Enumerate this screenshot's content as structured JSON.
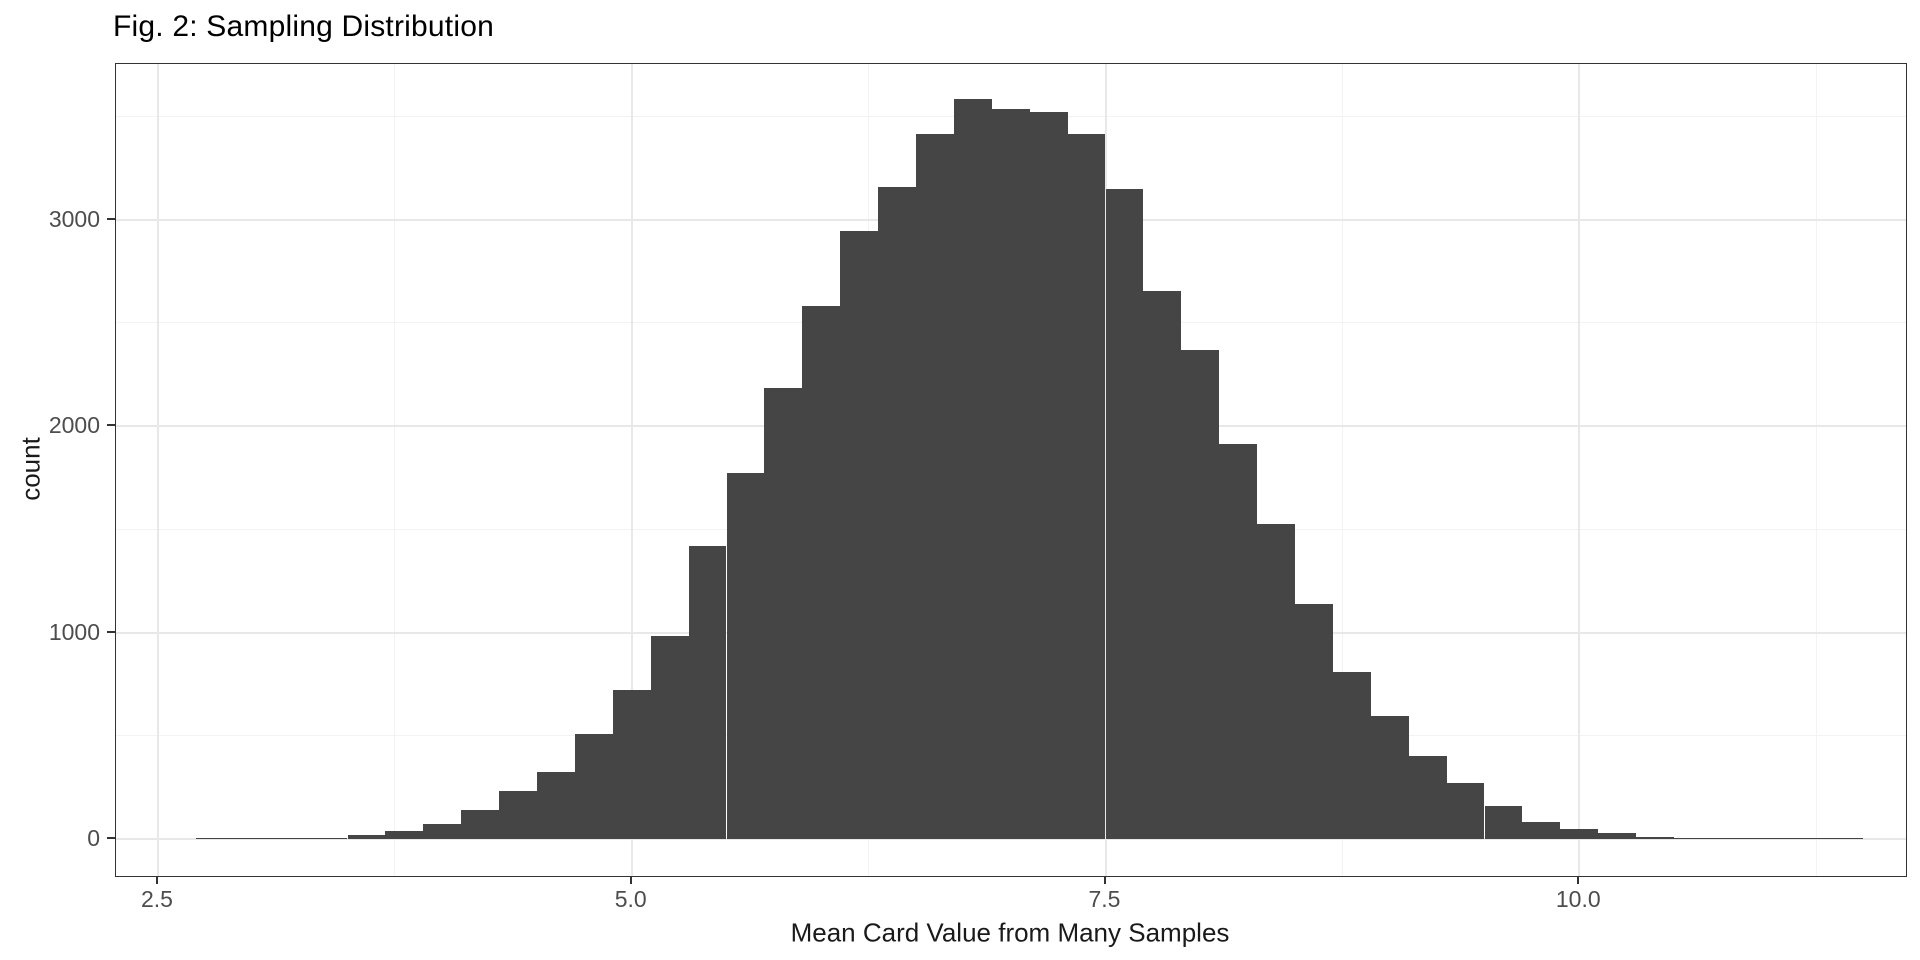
{
  "title": "Fig. 2: Sampling Distribution",
  "axes": {
    "x_label": "Mean Card Value from Many Samples",
    "y_label": "count"
  },
  "colors": {
    "background": "#ffffff",
    "bar_fill": "#454545",
    "grid_major": "#e8e8e8",
    "grid_minor": "#f3f3f3",
    "panel_border": "#333333",
    "tick_mark": "#333333",
    "tick_label": "#4d4d4d",
    "axis_title": "#1a1a1a",
    "title": "#000000"
  },
  "chart_data": {
    "type": "bar",
    "subtype": "histogram",
    "title": "Fig. 2: Sampling Distribution",
    "xlabel": "Mean Card Value from Many Samples",
    "ylabel": "count",
    "grid": true,
    "legend": false,
    "bin_width": 0.2,
    "bin_centers": [
      2.8,
      3.0,
      3.2,
      3.4,
      3.6,
      3.8,
      4.0,
      4.2,
      4.4,
      4.6,
      4.8,
      5.0,
      5.2,
      5.4,
      5.6,
      5.8,
      6.0,
      6.2,
      6.4,
      6.6,
      6.8,
      7.0,
      7.2,
      7.4,
      7.6,
      7.8,
      8.0,
      8.2,
      8.4,
      8.6,
      8.8,
      9.0,
      9.2,
      9.4,
      9.6,
      9.8,
      10.0,
      10.2,
      10.4,
      10.6,
      10.8,
      11.0,
      11.2,
      11.4
    ],
    "counts": [
      2,
      3,
      5,
      7,
      19,
      39,
      73,
      140,
      232,
      325,
      510,
      722,
      983,
      1419,
      1773,
      2184,
      2580,
      2944,
      3157,
      3415,
      3584,
      3536,
      3521,
      3415,
      3148,
      2654,
      2368,
      1913,
      1525,
      1138,
      809,
      596,
      402,
      271,
      160,
      82,
      48,
      29,
      12,
      6,
      3,
      4,
      1,
      1
    ],
    "x_tick_values": [
      2.5,
      5.0,
      7.5,
      10.0
    ],
    "x_tick_labels": [
      "2.5",
      "5.0",
      "7.5",
      "10.0"
    ],
    "y_tick_values": [
      0,
      1000,
      2000,
      3000
    ],
    "y_tick_labels": [
      "0",
      "1000",
      "2000",
      "3000"
    ],
    "x_minor_values": [
      3.75,
      6.25,
      8.75,
      11.25
    ],
    "y_minor_values": [
      500,
      1500,
      2500,
      3500
    ],
    "xlim": [
      2.28,
      11.72
    ],
    "ylim": [
      0,
      3750
    ]
  }
}
